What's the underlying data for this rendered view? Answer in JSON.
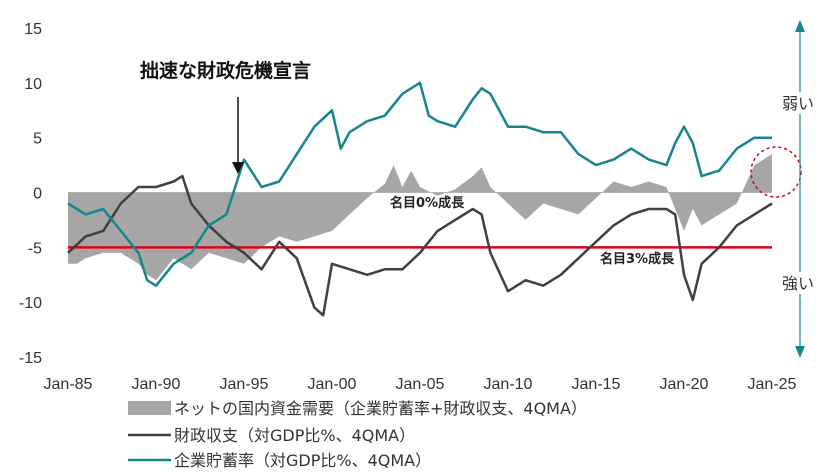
{
  "chart_data": {
    "type": "line",
    "xlabel": "",
    "ylabel": "",
    "ylim": [
      -15,
      15
    ],
    "xlim": [
      1985.0,
      2025.0
    ],
    "yticks": [
      15,
      10,
      5,
      0,
      -5,
      -10,
      -15
    ],
    "xtick_labels": [
      "Jan-85",
      "Jan-90",
      "Jan-95",
      "Jan-00",
      "Jan-05",
      "Jan-10",
      "Jan-15",
      "Jan-20",
      "Jan-25"
    ],
    "legend_position": "bottom",
    "colors": {
      "net_demand": "#a6a6a6",
      "fiscal_balance": "#404040",
      "corporate_saving": "#16868c",
      "ref_line": "#e0001b",
      "arrow": "#16868c"
    },
    "annotations": {
      "crisis": "拙速な財政危機宣言",
      "nominal0": "名目0%成長",
      "nominal3": "名目3%成長",
      "weak": "弱い",
      "strong": "強い"
    },
    "reference_lines": [
      {
        "value": -5,
        "label": "名目3%成長"
      }
    ],
    "series": [
      {
        "name": "ネットの国内資金需要（企業貯蓄率+財政収支、4QMA）",
        "kind": "area",
        "x": [
          1985.0,
          1985.5,
          1986.0,
          1987.0,
          1988.0,
          1989.0,
          1989.5,
          1990.0,
          1990.5,
          1991.0,
          1992.0,
          1993.0,
          1994.0,
          1995.0,
          1996.0,
          1997.0,
          1998.0,
          1999.0,
          2000.0,
          2001.0,
          2002.0,
          2003.0,
          2003.5,
          2004.0,
          2004.5,
          2005.0,
          2006.0,
          2007.0,
          2008.0,
          2008.5,
          2009.0,
          2010.0,
          2011.0,
          2012.0,
          2013.0,
          2014.0,
          2015.0,
          2016.0,
          2017.0,
          2018.0,
          2019.0,
          2019.5,
          2020.0,
          2020.5,
          2021.0,
          2022.0,
          2023.0,
          2024.0,
          2025.0
        ],
        "values": [
          -6.5,
          -6.5,
          -6.0,
          -5.5,
          -5.5,
          -6.5,
          -7.5,
          -8.0,
          -7.0,
          -6.0,
          -7.0,
          -5.5,
          -6.0,
          -6.5,
          -5.0,
          -4.0,
          -4.5,
          -4.0,
          -3.5,
          -2.0,
          -0.5,
          0.8,
          2.5,
          0.5,
          2.0,
          0.5,
          -0.3,
          0.3,
          1.5,
          2.3,
          0.5,
          -1.0,
          -2.5,
          -1.0,
          -1.5,
          -2.0,
          -0.5,
          1.0,
          0.5,
          1.0,
          0.5,
          -1.5,
          -3.5,
          -1.5,
          -3.0,
          -2.0,
          -1.0,
          2.5,
          3.5
        ]
      },
      {
        "name": "財政収支（対GDP比%、4QMA）",
        "kind": "line",
        "x": [
          1985.0,
          1986.0,
          1987.0,
          1988.0,
          1989.0,
          1990.0,
          1991.0,
          1991.5,
          1992.0,
          1993.0,
          1994.0,
          1995.0,
          1996.0,
          1997.0,
          1998.0,
          1999.0,
          1999.5,
          2000.0,
          2001.0,
          2002.0,
          2003.0,
          2004.0,
          2005.0,
          2006.0,
          2007.0,
          2008.0,
          2008.5,
          2009.0,
          2010.0,
          2011.0,
          2012.0,
          2013.0,
          2014.0,
          2015.0,
          2016.0,
          2017.0,
          2018.0,
          2019.0,
          2019.5,
          2020.0,
          2020.5,
          2021.0,
          2022.0,
          2023.0,
          2024.0,
          2025.0
        ],
        "values": [
          -5.5,
          -4.0,
          -3.5,
          -1.0,
          0.5,
          0.5,
          1.0,
          1.5,
          -1.0,
          -3.0,
          -4.5,
          -5.5,
          -7.0,
          -4.5,
          -6.0,
          -10.5,
          -11.2,
          -6.5,
          -7.0,
          -7.5,
          -7.0,
          -7.0,
          -5.5,
          -3.5,
          -2.5,
          -1.5,
          -2.0,
          -5.5,
          -9.0,
          -8.0,
          -8.5,
          -7.5,
          -6.0,
          -4.5,
          -3.0,
          -2.0,
          -1.5,
          -1.5,
          -2.0,
          -7.5,
          -9.8,
          -6.5,
          -5.0,
          -3.0,
          -2.0,
          -1.0
        ]
      },
      {
        "name": "企業貯蓄率（対GDP比%、4QMA）",
        "kind": "line",
        "x": [
          1985.0,
          1986.0,
          1987.0,
          1988.0,
          1989.0,
          1989.5,
          1990.0,
          1991.0,
          1992.0,
          1993.0,
          1994.0,
          1995.0,
          1996.0,
          1997.0,
          1998.0,
          1999.0,
          2000.0,
          2000.5,
          2001.0,
          2002.0,
          2003.0,
          2004.0,
          2005.0,
          2005.5,
          2006.0,
          2007.0,
          2008.0,
          2008.5,
          2009.0,
          2010.0,
          2011.0,
          2012.0,
          2013.0,
          2014.0,
          2015.0,
          2016.0,
          2017.0,
          2018.0,
          2019.0,
          2019.5,
          2020.0,
          2020.5,
          2021.0,
          2022.0,
          2023.0,
          2024.0,
          2025.0
        ],
        "values": [
          -1.0,
          -2.0,
          -1.5,
          -3.5,
          -5.5,
          -8.0,
          -8.5,
          -6.5,
          -5.5,
          -3.0,
          -2.0,
          3.0,
          0.5,
          1.0,
          3.5,
          6.0,
          7.5,
          4.0,
          5.5,
          6.5,
          7.0,
          9.0,
          10.0,
          7.0,
          6.5,
          6.0,
          8.5,
          9.5,
          9.0,
          6.0,
          6.0,
          5.5,
          5.5,
          3.5,
          2.5,
          3.0,
          4.0,
          3.0,
          2.5,
          4.5,
          6.0,
          4.5,
          1.5,
          2.0,
          4.0,
          5.0,
          5.0
        ]
      }
    ],
    "legend": [
      {
        "label": "ネットの国内資金需要（企業貯蓄率+財政収支、4QMA）",
        "style": "area"
      },
      {
        "label": "財政収支（対GDP比%、4QMA）",
        "style": "line-dark"
      },
      {
        "label": "企業貯蓄率（対GDP比%、4QMA）",
        "style": "line-teal"
      }
    ]
  }
}
